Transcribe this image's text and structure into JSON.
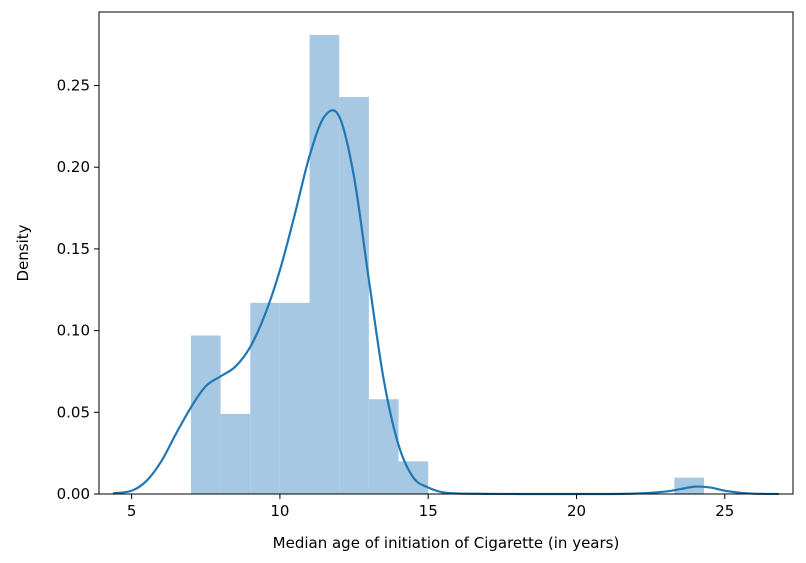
{
  "chart_data": {
    "type": "histogram",
    "xlabel": "Median age of initiation of Cigarette (in years)",
    "ylabel": "Density",
    "xlim": [
      3.9,
      27.3
    ],
    "ylim": [
      0,
      0.295
    ],
    "x_ticks": [
      5,
      10,
      15,
      20,
      25
    ],
    "y_ticks": [
      0.0,
      0.05,
      0.1,
      0.15,
      0.2,
      0.25
    ],
    "x_tick_labels": [
      "5",
      "10",
      "15",
      "20",
      "25"
    ],
    "y_tick_labels": [
      "0.00",
      "0.05",
      "0.10",
      "0.15",
      "0.20",
      "0.25"
    ],
    "grid": false,
    "bins": [
      {
        "x0": 7.0,
        "x1": 8.0,
        "density": 0.097
      },
      {
        "x0": 8.0,
        "x1": 9.0,
        "density": 0.049
      },
      {
        "x0": 9.0,
        "x1": 10.0,
        "density": 0.117
      },
      {
        "x0": 10.0,
        "x1": 11.0,
        "density": 0.117
      },
      {
        "x0": 11.0,
        "x1": 12.0,
        "density": 0.281
      },
      {
        "x0": 12.0,
        "x1": 13.0,
        "density": 0.243
      },
      {
        "x0": 13.0,
        "x1": 14.0,
        "density": 0.058
      },
      {
        "x0": 14.0,
        "x1": 15.0,
        "density": 0.02
      },
      {
        "x0": 23.3,
        "x1": 24.3,
        "density": 0.01
      }
    ],
    "kde": {
      "x": [
        4.4,
        5.0,
        5.5,
        6.0,
        6.5,
        7.0,
        7.5,
        8.0,
        8.5,
        9.0,
        9.5,
        10.0,
        10.5,
        11.0,
        11.5,
        12.0,
        12.5,
        13.0,
        13.5,
        14.0,
        14.5,
        15.0,
        15.5,
        16.0,
        17.0,
        18.0,
        19.0,
        20.0,
        21.0,
        22.0,
        23.0,
        23.5,
        24.0,
        24.5,
        25.0,
        25.5,
        26.0,
        26.8
      ],
      "y": [
        0.0005,
        0.002,
        0.008,
        0.02,
        0.037,
        0.053,
        0.066,
        0.072,
        0.078,
        0.09,
        0.11,
        0.137,
        0.171,
        0.207,
        0.231,
        0.231,
        0.194,
        0.131,
        0.07,
        0.03,
        0.01,
        0.004,
        0.001,
        0.0003,
        0.0001,
        0.0,
        0.0,
        0.0,
        0.0,
        0.0003,
        0.0015,
        0.003,
        0.0045,
        0.004,
        0.002,
        0.0008,
        0.0002,
        0.0
      ]
    },
    "colors": {
      "bar": "#a6c8e2",
      "line": "#1f77b4",
      "axis": "#000000"
    }
  }
}
